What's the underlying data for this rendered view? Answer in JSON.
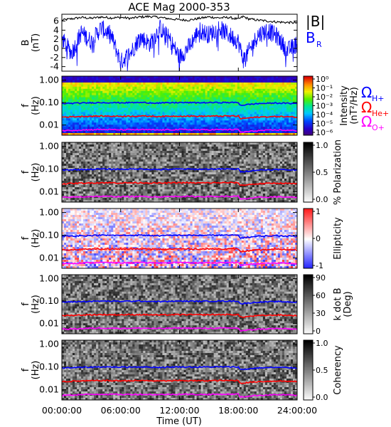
{
  "title": "ACE Mag 2000-353",
  "xlabel": "Time (UT)",
  "x_ticks": [
    "00:00:00",
    "06:00:00",
    "12:00:00",
    "18:00:00",
    "24:00:00"
  ],
  "colors": {
    "B_total": "#000000",
    "B_R": "#0000ff",
    "omega_H": "#0000ff",
    "omega_He": "#ff0000",
    "omega_O": "#ff00ff"
  },
  "legend": {
    "B_total": "|B|",
    "B_R_main": "B",
    "B_R_sub": "R",
    "omega_H_main": "Ω",
    "omega_H_sub": "H+",
    "omega_He_main": "Ω",
    "omega_He_sub": "He+",
    "omega_O_main": "Ω",
    "omega_O_sub": "O+"
  },
  "chart_data": [
    {
      "type": "line",
      "panel": "magnetic-field",
      "ylabel_top": "B",
      "ylabel_bottom": "(nT)",
      "ylim": [
        -5,
        7.5
      ],
      "y_ticks": [
        "6",
        "4",
        "2",
        "0",
        "-2",
        "-4"
      ],
      "xlim_hours": [
        0,
        24
      ],
      "series": [
        {
          "name": "|B|",
          "x": [
            0,
            1,
            2,
            3,
            4,
            5,
            6,
            7,
            8,
            9,
            10,
            11,
            12,
            13,
            14,
            15,
            16,
            17,
            18,
            18.5,
            19,
            20,
            21,
            22,
            23,
            24
          ],
          "values": [
            6.2,
            6.5,
            6.8,
            6.6,
            6.9,
            6.7,
            6.8,
            6.6,
            6.9,
            7.0,
            6.8,
            6.5,
            6.3,
            6.2,
            6.6,
            6.9,
            6.7,
            6.8,
            6.4,
            7.0,
            6.5,
            6.2,
            6.0,
            5.8,
            5.7,
            5.6
          ]
        },
        {
          "name": "B_R",
          "x": [
            0,
            1,
            2,
            3,
            4,
            5,
            6,
            7,
            8,
            9,
            10,
            11,
            12,
            13,
            14,
            15,
            16,
            17,
            18,
            18.5,
            19,
            20,
            21,
            22,
            23,
            24
          ],
          "values": [
            2.0,
            -1.0,
            3.5,
            1.5,
            4.5,
            3.0,
            -3.0,
            -1.0,
            2.5,
            1.0,
            4.5,
            2.0,
            -2.0,
            0.5,
            4.0,
            3.0,
            4.5,
            3.0,
            1.5,
            -2.5,
            -1.0,
            3.0,
            4.0,
            2.5,
            -0.5,
            1.0
          ]
        }
      ]
    },
    {
      "type": "heatmap",
      "panel": "intensity",
      "ylabel_top": "f",
      "ylabel_bottom": "(Hz)",
      "y_ticks": [
        "1.00",
        "0.10",
        "0.01"
      ],
      "colorbar_label": "Intensity",
      "colorbar_units": "(nT²/Hz)",
      "colorbar_ticks": [
        "10⁰",
        "10⁻¹",
        "10⁻²",
        "10⁻³",
        "10⁻⁴",
        "10⁻⁵",
        "10⁻⁶"
      ],
      "colorbar_scale": "rainbow"
    },
    {
      "type": "heatmap",
      "panel": "polarization",
      "ylabel_top": "f",
      "ylabel_bottom": "(Hz)",
      "y_ticks": [
        "1.00",
        "0.10",
        "0.01"
      ],
      "colorbar_label": "% Polarization",
      "colorbar_ticks": [
        "1.0",
        "0.5",
        "0.0"
      ],
      "colorbar_scale": "grayscale"
    },
    {
      "type": "heatmap",
      "panel": "ellipticity",
      "ylabel_top": "f",
      "ylabel_bottom": "(Hz)",
      "y_ticks": [
        "1.00",
        "0.10",
        "0.01"
      ],
      "colorbar_label": "Ellipticity",
      "colorbar_ticks": [
        "1",
        "0",
        "-1"
      ],
      "colorbar_scale": "blue-white-red"
    },
    {
      "type": "heatmap",
      "panel": "k-dot-b",
      "ylabel_top": "f",
      "ylabel_bottom": "(Hz)",
      "y_ticks": [
        "1.00",
        "0.10",
        "0.01"
      ],
      "colorbar_label": "k dot B",
      "colorbar_units": "(Deg)",
      "colorbar_ticks": [
        "90",
        "60",
        "30",
        "0"
      ],
      "colorbar_scale": "grayscale"
    },
    {
      "type": "heatmap",
      "panel": "coherency",
      "ylabel_top": "f",
      "ylabel_bottom": "(Hz)",
      "y_ticks": [
        "1.00",
        "0.10",
        "0.01"
      ],
      "colorbar_label": "Coherency",
      "colorbar_ticks": [
        "1.0",
        "0.5",
        "0.0"
      ],
      "colorbar_scale": "grayscale"
    }
  ],
  "gyrofrequency_lines": {
    "x": [
      0,
      2,
      4,
      6,
      8,
      10,
      12,
      14,
      16,
      18,
      18.2,
      20,
      22,
      24
    ],
    "omega_H+": [
      0.09,
      0.095,
      0.1,
      0.098,
      0.1,
      0.095,
      0.1,
      0.098,
      0.1,
      0.1,
      0.075,
      0.09,
      0.095,
      0.09
    ],
    "omega_He+": [
      0.0225,
      0.024,
      0.025,
      0.0245,
      0.025,
      0.024,
      0.025,
      0.0245,
      0.025,
      0.025,
      0.019,
      0.0225,
      0.024,
      0.0225
    ],
    "omega_O+": [
      0.0056,
      0.006,
      0.0063,
      0.0061,
      0.0062,
      0.006,
      0.0063,
      0.0061,
      0.0062,
      0.0063,
      0.0047,
      0.0056,
      0.006,
      0.0056
    ]
  }
}
